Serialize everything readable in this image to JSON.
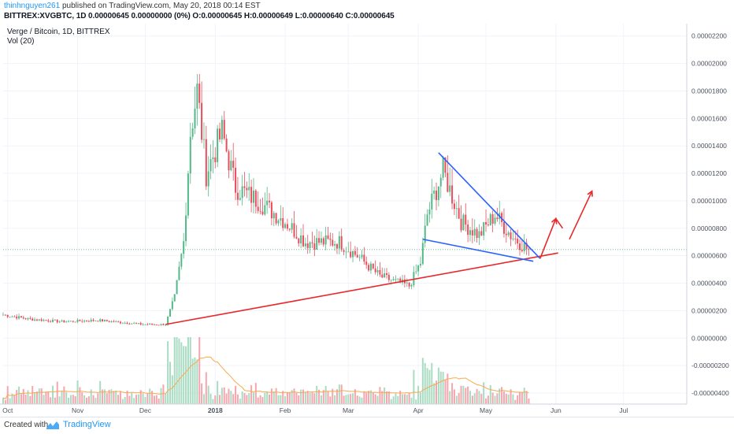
{
  "header": {
    "username": "thinhnguyen261",
    "published_text": "published on TradingView.com, May 20, 2018 00:14 EST",
    "ohlc_line": "BITTREX:XVGBTC, 1D  0.00000645 0.00000000 (0%) O:0.00000645 H:0.00000649 L:0.00000640 C:0.00000645"
  },
  "footer": {
    "created_with": "Created with",
    "brand": "TradingView"
  },
  "colors": {
    "up": "#53b987",
    "down": "#eb4d5c",
    "vol_up": "#a9dcc3",
    "vol_down": "#f5a6ae",
    "vol_ma": "#f9a94b",
    "grid": "#f0f3fa",
    "trend_red": "#e8282b",
    "trend_blue": "#2962ff",
    "price_line": "#53b987",
    "axis_text": "#4c525e"
  },
  "chart_data": {
    "type": "candlestick",
    "title": "Verge / Bitcoin, 1D, BITTREX",
    "indicator_label": "Vol (20)",
    "current_price_label": "0.00000645",
    "current_price": 6.45e-06,
    "y_axis": {
      "tick_labels": [
        "0.00002200",
        "0.00002000",
        "0.00001800",
        "0.00001600",
        "0.00001400",
        "0.00001200",
        "0.00001000",
        "0.00000800",
        "0.00000600",
        "0.00000400",
        "0.00000200",
        "0.00000000",
        "-0.00000200",
        "-0.00000400"
      ],
      "tick_values": [
        2.2e-05,
        2e-05,
        1.8e-05,
        1.6e-05,
        1.4e-05,
        1.2e-05,
        1e-05,
        8e-06,
        6e-06,
        4e-06,
        2e-06,
        0,
        -2e-06,
        -4e-06
      ],
      "range": [
        -4.8e-06,
        2.29e-05
      ]
    },
    "x_axis": {
      "tick_labels": [
        "Oct",
        "Nov",
        "Dec",
        "2018",
        "Feb",
        "Mar",
        "Apr",
        "May",
        "Jun",
        "Jul"
      ],
      "tick_dates": [
        "2017-10-01",
        "2017-11-01",
        "2017-12-01",
        "2018-01-01",
        "2018-02-01",
        "2018-03-01",
        "2018-04-01",
        "2018-05-01",
        "2018-06-01",
        "2018-07-01"
      ],
      "range": [
        "2017-09-29",
        "2018-07-29"
      ]
    },
    "price_keyframes": [
      {
        "date": "2017-09-29",
        "close": 1.7e-06
      },
      {
        "date": "2017-10-10",
        "close": 1.4e-06
      },
      {
        "date": "2017-10-25",
        "close": 1.2e-06
      },
      {
        "date": "2017-11-10",
        "close": 1.3e-06
      },
      {
        "date": "2017-11-30",
        "close": 1e-06
      },
      {
        "date": "2017-12-10",
        "close": 1e-06
      },
      {
        "date": "2017-12-14",
        "close": 3e-06
      },
      {
        "date": "2017-12-18",
        "close": 7e-06
      },
      {
        "date": "2017-12-21",
        "close": 1.5e-05
      },
      {
        "date": "2017-12-24",
        "close": 1.8e-05
      },
      {
        "date": "2017-12-28",
        "close": 1.2e-05
      },
      {
        "date": "2018-01-04",
        "close": 1.5e-05
      },
      {
        "date": "2018-01-10",
        "close": 1.1e-05
      },
      {
        "date": "2018-01-20",
        "close": 1e-05
      },
      {
        "date": "2018-02-01",
        "close": 8.5e-06
      },
      {
        "date": "2018-02-10",
        "close": 7e-06
      },
      {
        "date": "2018-02-25",
        "close": 7e-06
      },
      {
        "date": "2018-03-05",
        "close": 6e-06
      },
      {
        "date": "2018-03-15",
        "close": 4.5e-06
      },
      {
        "date": "2018-03-28",
        "close": 3.8e-06
      },
      {
        "date": "2018-04-02",
        "close": 5.5e-06
      },
      {
        "date": "2018-04-05",
        "close": 9e-06
      },
      {
        "date": "2018-04-12",
        "close": 1.22e-05
      },
      {
        "date": "2018-04-20",
        "close": 8.5e-06
      },
      {
        "date": "2018-04-28",
        "close": 7.5e-06
      },
      {
        "date": "2018-05-05",
        "close": 9e-06
      },
      {
        "date": "2018-05-12",
        "close": 7.5e-06
      },
      {
        "date": "2018-05-20",
        "close": 6.4e-06
      }
    ],
    "annotations": {
      "support_line": {
        "start": {
          "date": "2017-12-10",
          "price": 1e-06
        },
        "end": {
          "date": "2018-06-02",
          "price": 6.2e-06
        }
      },
      "wedge_upper": {
        "start": {
          "date": "2018-04-10",
          "price": 1.35e-05
        },
        "end": {
          "date": "2018-05-25",
          "price": 5.8e-06
        }
      },
      "wedge_lower": {
        "start": {
          "date": "2018-04-03",
          "price": 7.2e-06
        },
        "end": {
          "date": "2018-05-22",
          "price": 5.6e-06
        }
      },
      "projection_arrows": [
        {
          "date": "2018-05-25",
          "price": 5.8e-06
        },
        {
          "date": "2018-06-01",
          "price": 8.7e-06
        },
        {
          "date": "2018-06-04",
          "price": 8e-06
        },
        {
          "date": "2018-06-07",
          "price": 7.2e-06
        },
        {
          "date": "2018-06-17",
          "price": 1.07e-05
        }
      ]
    }
  }
}
